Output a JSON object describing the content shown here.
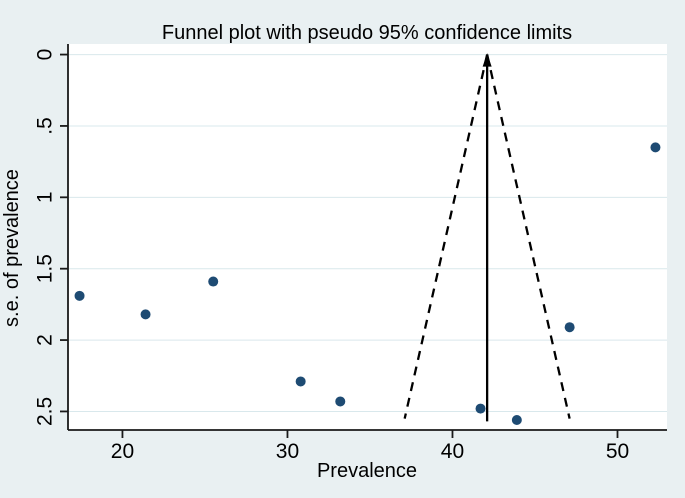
{
  "figure": {
    "background_color": "#e9f0f2",
    "plot_background_color": "#ffffff"
  },
  "chart_data": {
    "type": "scatter",
    "title": "Funnel plot with pseudo 95% confidence limits",
    "xlabel": "Prevalence",
    "ylabel": "s.e. of prevalence",
    "axes": {
      "xlim": [
        16.7,
        53.0
      ],
      "ylim": [
        -0.074,
        2.63
      ],
      "y_axis_reversed": true,
      "x_ticks": [
        20,
        30,
        40,
        50
      ],
      "x_tick_labels": [
        "20",
        "30",
        "40",
        "50"
      ],
      "y_ticks": [
        0,
        0.5,
        1,
        1.5,
        2,
        2.5
      ],
      "y_tick_labels": [
        "0",
        ".5",
        "1",
        "1.5",
        "2",
        "2.5"
      ],
      "grid": "horizontal-only"
    },
    "points": [
      {
        "prevalence": 17.4,
        "se": 1.69
      },
      {
        "prevalence": 21.4,
        "se": 1.82
      },
      {
        "prevalence": 25.5,
        "se": 1.59
      },
      {
        "prevalence": 30.8,
        "se": 2.29
      },
      {
        "prevalence": 33.2,
        "se": 2.43
      },
      {
        "prevalence": 41.7,
        "se": 2.48
      },
      {
        "prevalence": 43.9,
        "se": 2.56
      },
      {
        "prevalence": 47.1,
        "se": 1.91
      },
      {
        "prevalence": 52.3,
        "se": 0.65
      }
    ],
    "pooled_estimate_line": {
      "prevalence": 42.1,
      "se_from": 0,
      "se_to": 2.57,
      "style": "solid-with-up-arrow"
    },
    "confidence_limit_lines": {
      "center_prevalence": 42.1,
      "z_multiplier": 1.96,
      "se_from": 0,
      "se_to": 2.55,
      "style": "dashed"
    },
    "colors": {
      "marker": "#1e4b73",
      "funnel_line": "#000000",
      "estimate_line": "#000000",
      "grid_line": "#d9e8ec",
      "axis_line": "#1a1a1a",
      "text": "#000000"
    },
    "legend": null
  }
}
